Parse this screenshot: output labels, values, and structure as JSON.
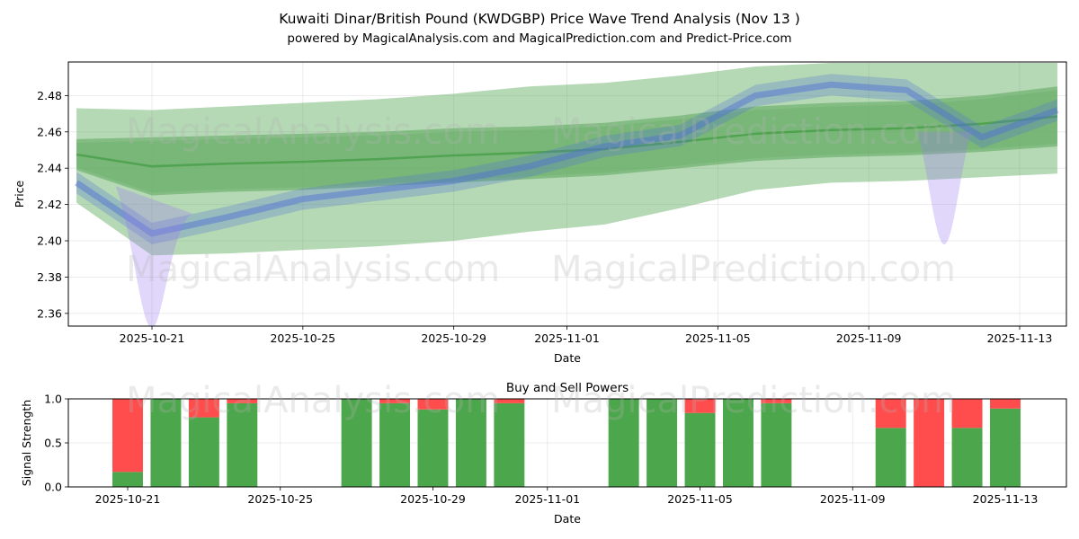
{
  "title": "Kuwaiti Dinar/British Pound (KWDGBP) Price Wave Trend Analysis (Nov 13 )",
  "subtitle": "powered by MagicalAnalysis.com and MagicalPrediction.com and Predict-Price.com",
  "watermarks": [
    "MagicalAnalysis.com",
    "MagicalPrediction.com"
  ],
  "colors": {
    "buy": "#4ca64c",
    "sell": "#ff4c4c",
    "band": "#5aa85a",
    "wave": "#4e6ed8",
    "wave_purple": "#9a7cf0"
  },
  "chart_data": [
    {
      "type": "area",
      "title": "",
      "xlabel": "Date",
      "ylabel": "Price",
      "x_dates": [
        "2025-10-19",
        "2025-10-21",
        "2025-10-23",
        "2025-10-25",
        "2025-10-27",
        "2025-10-29",
        "2025-10-31",
        "2025-11-02",
        "2025-11-04",
        "2025-11-06",
        "2025-11-08",
        "2025-11-10",
        "2025-11-12",
        "2025-11-14"
      ],
      "xticks": [
        "2025-10-21",
        "2025-10-25",
        "2025-10-29",
        "2025-11-01",
        "2025-11-05",
        "2025-11-09",
        "2025-11-13"
      ],
      "yticks": [
        "2.36",
        "2.38",
        "2.40",
        "2.42",
        "2.44",
        "2.46",
        "2.48"
      ],
      "ylim": [
        2.353,
        2.4985
      ],
      "grid": true,
      "series": [
        {
          "name": "outer trend band upper",
          "values": [
            2.473,
            2.472,
            2.474,
            2.476,
            2.478,
            2.481,
            2.485,
            2.487,
            2.491,
            2.496,
            2.498,
            2.498,
            2.498,
            2.498
          ]
        },
        {
          "name": "outer trend band lower",
          "values": [
            2.421,
            2.392,
            2.393,
            2.395,
            2.397,
            2.4,
            2.405,
            2.409,
            2.418,
            2.428,
            2.432,
            2.433,
            2.435,
            2.437
          ]
        },
        {
          "name": "inner trend band upper",
          "values": [
            2.456,
            2.457,
            2.458,
            2.459,
            2.46,
            2.462,
            2.463,
            2.465,
            2.469,
            2.474,
            2.476,
            2.477,
            2.48,
            2.485
          ]
        },
        {
          "name": "inner trend band lower",
          "values": [
            2.439,
            2.425,
            2.427,
            2.428,
            2.43,
            2.432,
            2.434,
            2.436,
            2.44,
            2.444,
            2.446,
            2.447,
            2.449,
            2.452
          ]
        },
        {
          "name": "price wave",
          "values": [
            2.432,
            2.404,
            2.413,
            2.423,
            2.428,
            2.433,
            2.441,
            2.452,
            2.458,
            2.48,
            2.486,
            2.483,
            2.457,
            2.472
          ]
        }
      ]
    },
    {
      "type": "bar",
      "title": "Buy and Sell Powers",
      "xlabel": "Date",
      "ylabel": "Signal Strength",
      "xticks": [
        "2025-10-21",
        "2025-10-25",
        "2025-10-29",
        "2025-11-01",
        "2025-11-05",
        "2025-11-09",
        "2025-11-13"
      ],
      "yticks": [
        "0.0",
        "0.5",
        "1.0"
      ],
      "ylim": [
        0,
        1
      ],
      "categories": [
        "2025-10-21",
        "2025-10-22",
        "2025-10-23",
        "2025-10-24",
        "2025-10-27",
        "2025-10-28",
        "2025-10-29",
        "2025-10-30",
        "2025-10-31",
        "2025-11-03",
        "2025-11-04",
        "2025-11-05",
        "2025-11-06",
        "2025-11-07",
        "2025-11-10",
        "2025-11-11",
        "2025-11-12",
        "2025-11-13"
      ],
      "series": [
        {
          "name": "Buy",
          "values": [
            0.17,
            1.0,
            0.79,
            0.95,
            1.0,
            0.95,
            0.88,
            1.0,
            0.95,
            1.0,
            1.0,
            0.84,
            1.0,
            0.95,
            0.67,
            0.0,
            0.67,
            0.89
          ]
        },
        {
          "name": "Sell",
          "values": [
            0.83,
            0.0,
            0.21,
            0.05,
            0.0,
            0.05,
            0.12,
            0.0,
            0.05,
            0.0,
            0.0,
            0.16,
            0.0,
            0.05,
            0.33,
            1.0,
            0.33,
            0.11
          ]
        }
      ]
    }
  ]
}
